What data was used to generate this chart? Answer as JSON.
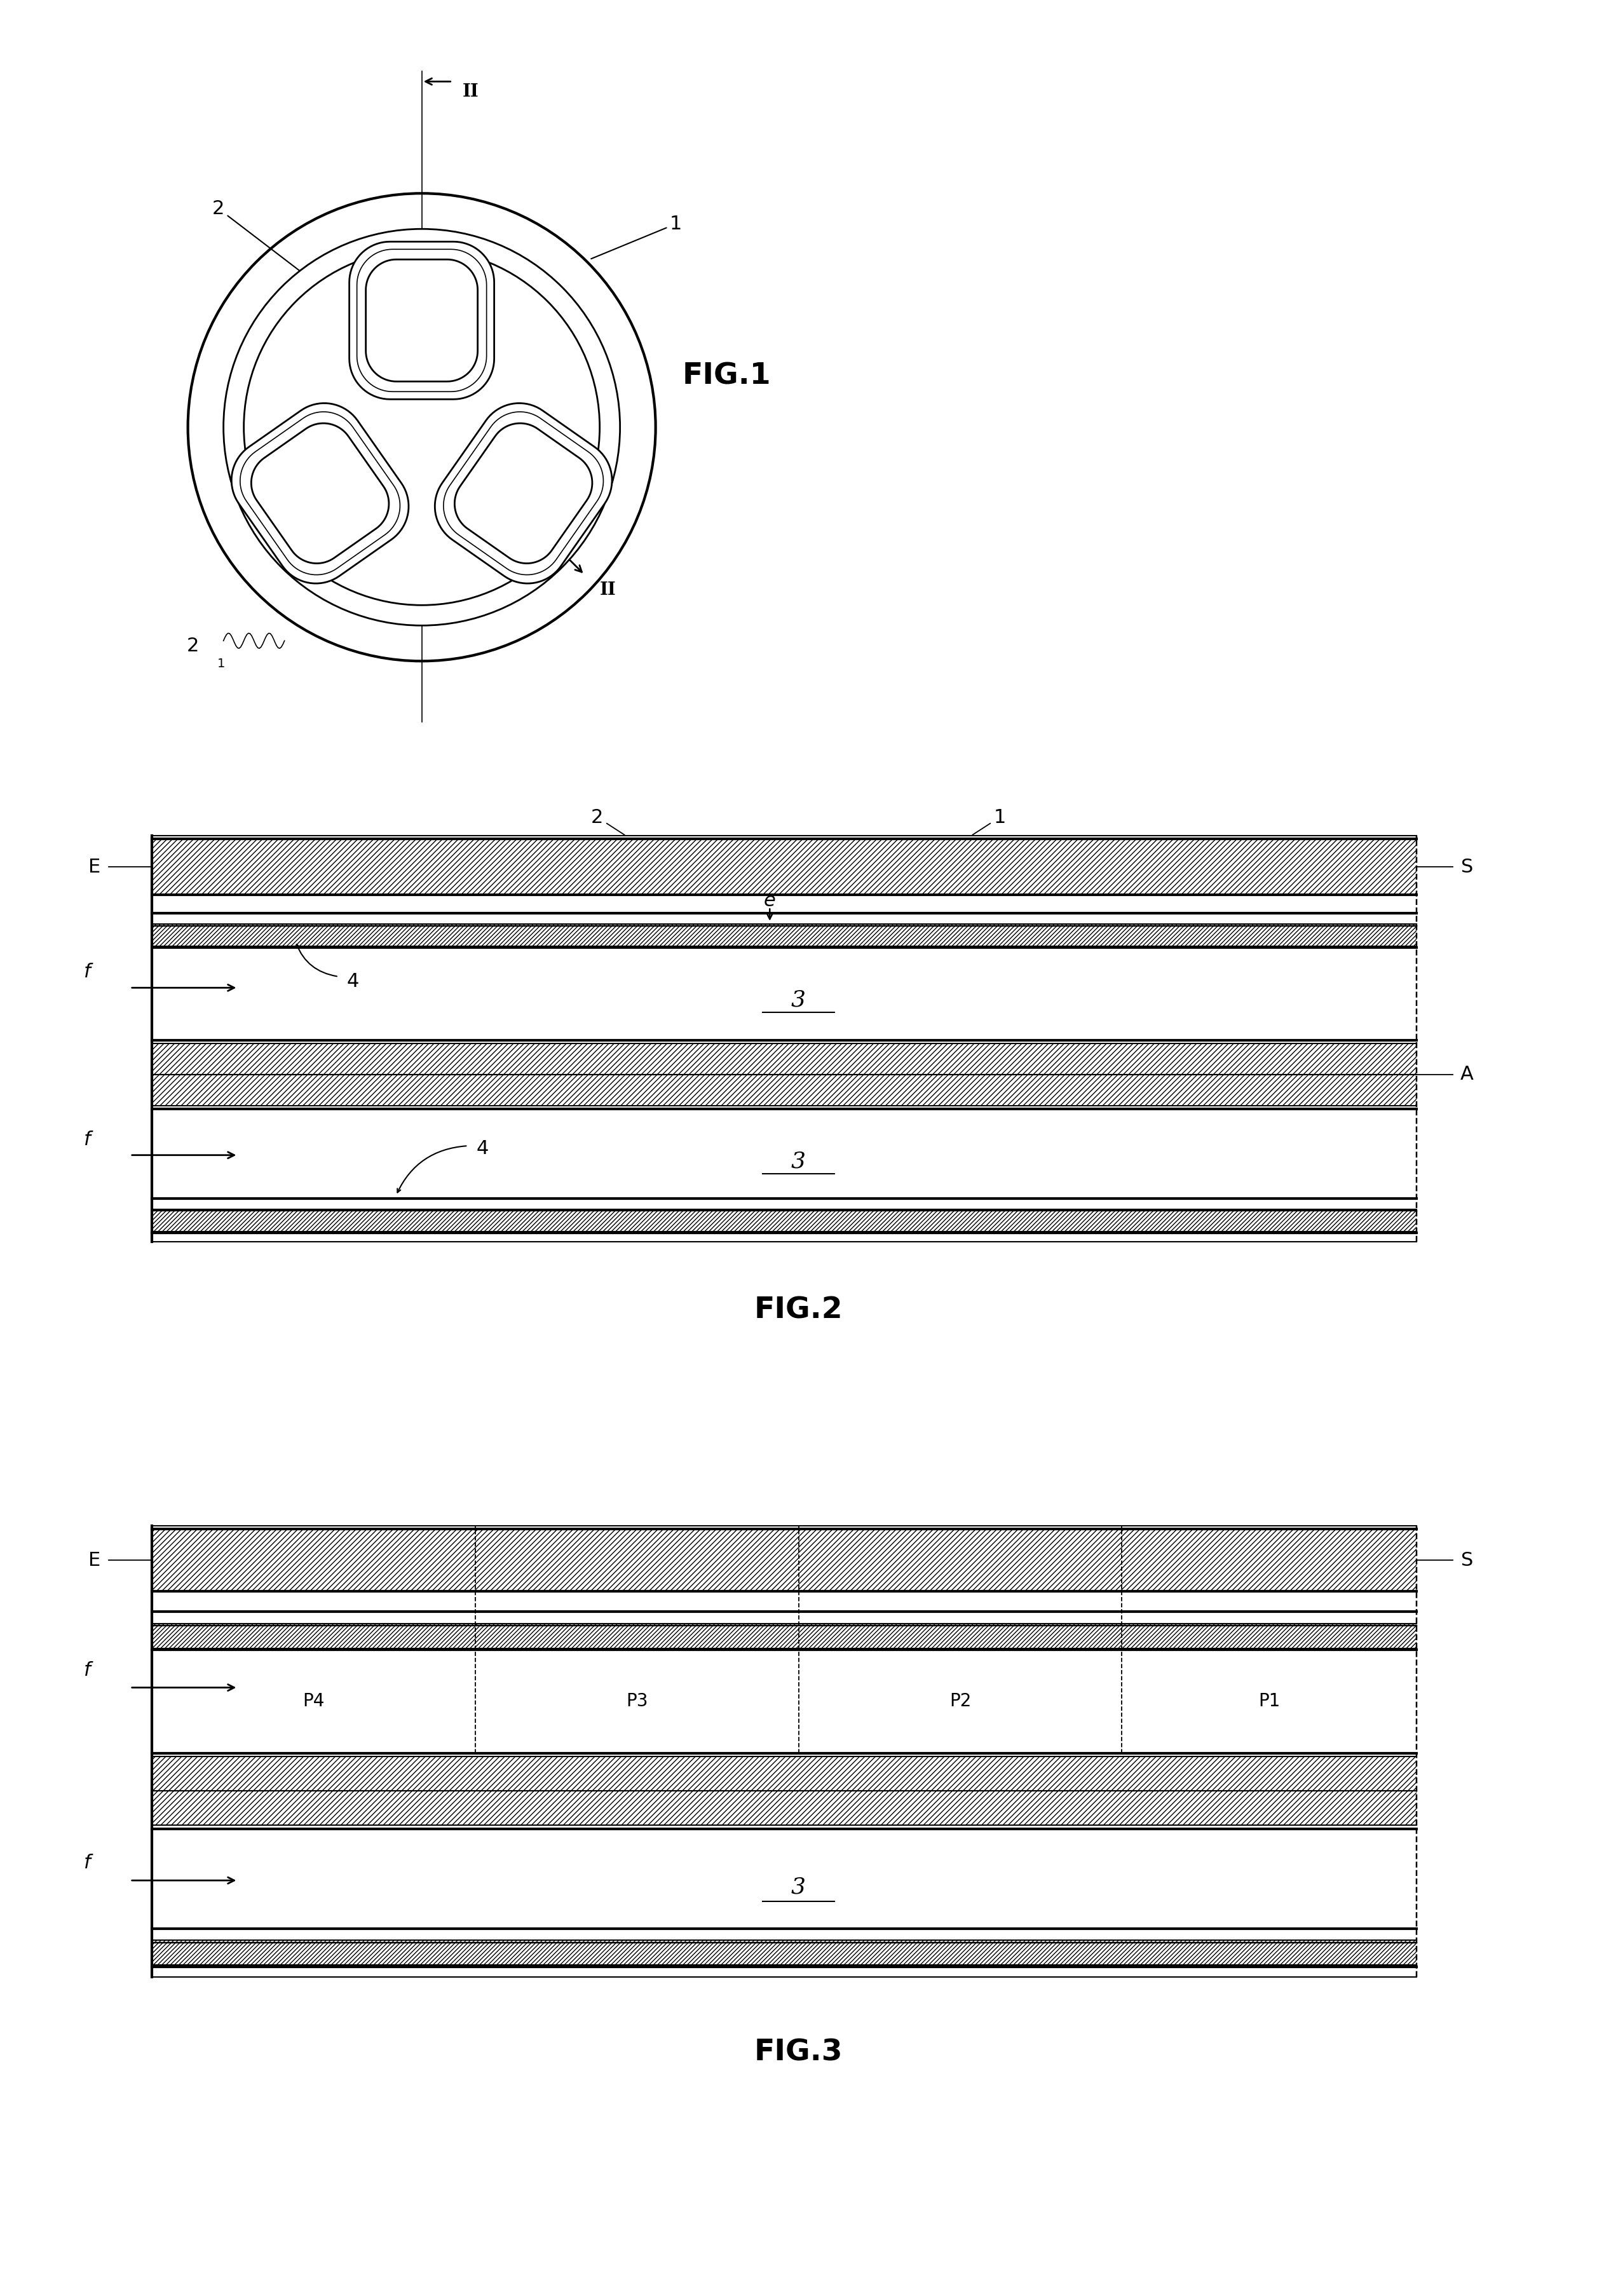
{
  "bg_color": "#ffffff",
  "fig_width": 25.13,
  "fig_height": 36.13,
  "fig1_title": "FIG.1",
  "fig2_title": "FIG.2",
  "fig3_title": "FIG.3",
  "lw_thick": 3.0,
  "lw_mid": 2.0,
  "lw_thin": 1.2,
  "lw_dashed": 1.2,
  "fontsize_label": 22,
  "fontsize_title": 34
}
